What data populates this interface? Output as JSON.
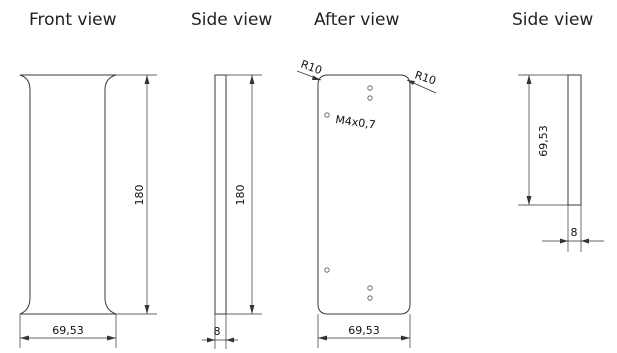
{
  "views": {
    "front": {
      "title": "Front view",
      "height_label": "180",
      "width_label": "69,53"
    },
    "side1": {
      "title": "Side view",
      "height_label": "180",
      "thickness_label": "8"
    },
    "after": {
      "title": "After view",
      "radius_left": "R10",
      "radius_right": "R10",
      "thread_label": "M4x0,7",
      "width_label": "69,53"
    },
    "side2": {
      "title": "Side view",
      "height_label": "69,53",
      "thickness_label": "8"
    }
  }
}
